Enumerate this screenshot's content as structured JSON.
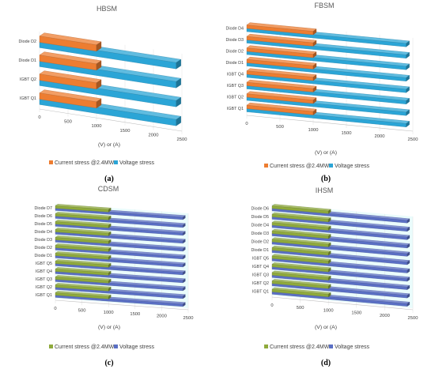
{
  "chart_data": [
    {
      "type": "bar",
      "orientation": "horizontal-3d",
      "title": "HBSM",
      "subfigure": "(a)",
      "categories": [
        "IGBT Q1",
        "IGBT Q2",
        "Diode D1",
        "Diode D2"
      ],
      "series": [
        {
          "name": "Current stress @2.4MW",
          "values": [
            1000,
            1000,
            1000,
            1000
          ]
        },
        {
          "name": "Voltage stress",
          "values": [
            2400,
            2400,
            2400,
            2400
          ]
        }
      ],
      "xlabel": "(V) or (A)",
      "xticks": [
        "0",
        "500",
        "1000",
        "1500",
        "2000",
        "2500"
      ],
      "xlim": [
        0,
        2500
      ],
      "legend": "bottom",
      "colors": {
        "current": "#ed7d31",
        "voltage": "#2ba5d6"
      }
    },
    {
      "type": "bar",
      "orientation": "horizontal-3d",
      "title": "FBSM",
      "subfigure": "(b)",
      "categories": [
        "IGBT Q1",
        "IGBT Q2",
        "IGBT Q3",
        "IGBT Q4",
        "Diode D1",
        "Diode D2",
        "Diode D3",
        "Diode D4"
      ],
      "series": [
        {
          "name": "Current stress @2.4MW",
          "values": [
            1000,
            1000,
            1000,
            1000,
            1000,
            1000,
            1000,
            1000
          ]
        },
        {
          "name": "Voltage stress",
          "values": [
            2400,
            2400,
            2400,
            2400,
            2400,
            2400,
            2400,
            2400
          ]
        }
      ],
      "xlabel": "(V) or (A)",
      "xticks": [
        "0",
        "500",
        "1000",
        "1500",
        "2000",
        "2500"
      ],
      "xlim": [
        0,
        2500
      ],
      "legend": "bottom",
      "colors": {
        "current": "#ed7d31",
        "voltage": "#2ba5d6"
      }
    },
    {
      "type": "bar",
      "orientation": "horizontal-3d",
      "title": "CDSM",
      "subfigure": "(c)",
      "categories": [
        "IGBT Q1",
        "IGBT Q2",
        "IGBT Q3",
        "IGBT Q4",
        "IGBT Q5",
        "Diode D1",
        "Diode D2",
        "Diode D3",
        "Diode D4",
        "Diode D5",
        "Diode D6",
        "Diode D7"
      ],
      "series": [
        {
          "name": "Current stress @2.4MW",
          "values": [
            1000,
            1000,
            1000,
            1000,
            1000,
            1000,
            1000,
            1000,
            1000,
            1000,
            1000,
            1000
          ]
        },
        {
          "name": "Voltage stress",
          "values": [
            2400,
            2400,
            2400,
            2400,
            2400,
            2400,
            2400,
            2400,
            2400,
            2400,
            2400,
            2400
          ]
        }
      ],
      "xlabel": "(V) or (A)",
      "xticks": [
        "0",
        "500",
        "1000",
        "1500",
        "2000",
        "2500"
      ],
      "xlim": [
        0,
        2500
      ],
      "legend": "bottom",
      "colors": {
        "current": "#8faa3c",
        "voltage": "#5a6fc4"
      }
    },
    {
      "type": "bar",
      "orientation": "horizontal-3d",
      "title": "IHSM",
      "subfigure": "(d)",
      "categories": [
        "IGBT Q1",
        "IGBT Q2",
        "IGBT Q3",
        "IGBT Q4",
        "IGBT Q5",
        "Diode D1",
        "Diode D2",
        "Diode D3",
        "Diode D4",
        "Diode D5",
        "Diode D6"
      ],
      "series": [
        {
          "name": "Current stress @2.4MW",
          "values": [
            1000,
            1000,
            1000,
            1000,
            1000,
            1000,
            1000,
            1000,
            1000,
            1000,
            1000
          ]
        },
        {
          "name": "Voltage stress",
          "values": [
            2400,
            2400,
            2400,
            2400,
            2400,
            2400,
            2400,
            2400,
            2400,
            2400,
            2400
          ]
        }
      ],
      "xlabel": "(V) or (A)",
      "xticks": [
        "0",
        "500",
        "1000",
        "1500",
        "2000",
        "2500"
      ],
      "xlim": [
        0,
        2500
      ],
      "legend": "bottom",
      "colors": {
        "current": "#8faa3c",
        "voltage": "#5a6fc4"
      }
    }
  ]
}
